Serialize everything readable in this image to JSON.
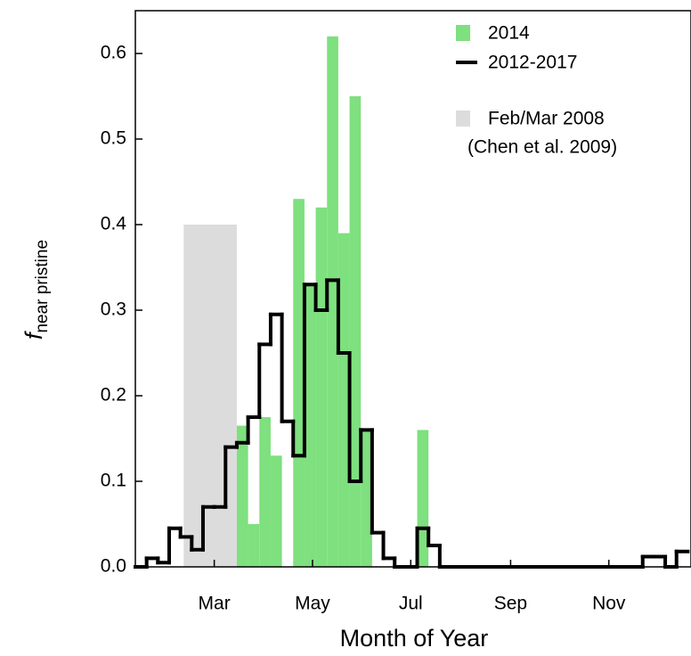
{
  "chart_data": {
    "type": "histogram",
    "xlabel": "Month of Year",
    "ylabel": "f",
    "ylabel_sub": "near pristine",
    "xlim": [
      11,
      356
    ],
    "ylim": [
      0,
      0.65
    ],
    "xticks": [
      {
        "value": 60,
        "label": "Mar"
      },
      {
        "value": 121,
        "label": "May"
      },
      {
        "value": 182,
        "label": "Jul"
      },
      {
        "value": 244,
        "label": "Sep"
      },
      {
        "value": 305,
        "label": "Nov"
      }
    ],
    "yticks": [
      {
        "value": 0,
        "label": "0.0"
      },
      0.1,
      0.2,
      0.3,
      0.4,
      0.5,
      0.6
    ],
    "bins": [
      11,
      18,
      25,
      32,
      39,
      46,
      53,
      60,
      67,
      74,
      81,
      88,
      95,
      102,
      109,
      116,
      123,
      130,
      137,
      144,
      151,
      158,
      165,
      172,
      179,
      186,
      193,
      200,
      207,
      214,
      221,
      228,
      235,
      242,
      249,
      256,
      263,
      270,
      277,
      284,
      291,
      298,
      305,
      312,
      319,
      326,
      333,
      340,
      347,
      354
    ],
    "series": [
      {
        "name": "2014",
        "color": "#7ee07e",
        "style": "bar",
        "values": [
          0,
          0,
          0,
          0,
          0,
          0,
          0,
          0,
          0,
          0.165,
          0.05,
          0.175,
          0.13,
          0,
          0.43,
          0.33,
          0.42,
          0.62,
          0.39,
          0.55,
          0.16,
          0,
          0,
          0,
          0,
          0.16,
          0,
          0,
          0,
          0,
          0,
          0,
          0,
          0,
          0,
          0,
          0,
          0,
          0,
          0,
          0,
          0,
          0,
          0,
          0,
          0,
          0,
          0,
          0
        ]
      },
      {
        "name": "2012-2017",
        "color": "#000000",
        "style": "step",
        "values": [
          0,
          0.01,
          0.005,
          0.045,
          0.035,
          0.02,
          0.07,
          0.07,
          0.14,
          0.145,
          0.175,
          0.26,
          0.295,
          0.17,
          0.13,
          0.33,
          0.3,
          0.335,
          0.25,
          0.1,
          0.16,
          0.04,
          0.01,
          0,
          0,
          0.045,
          0.025,
          0,
          0,
          0,
          0,
          0,
          0,
          0,
          0,
          0,
          0,
          0,
          0,
          0,
          0,
          0,
          0,
          0,
          0,
          0.012,
          0.012,
          0,
          0.018
        ]
      }
    ],
    "shaded": {
      "name": "Feb/Mar 2008",
      "citation": "(Chen et al. 2009)",
      "color": "#dcdcdc",
      "x": [
        41,
        74
      ],
      "value": 0.4
    }
  }
}
